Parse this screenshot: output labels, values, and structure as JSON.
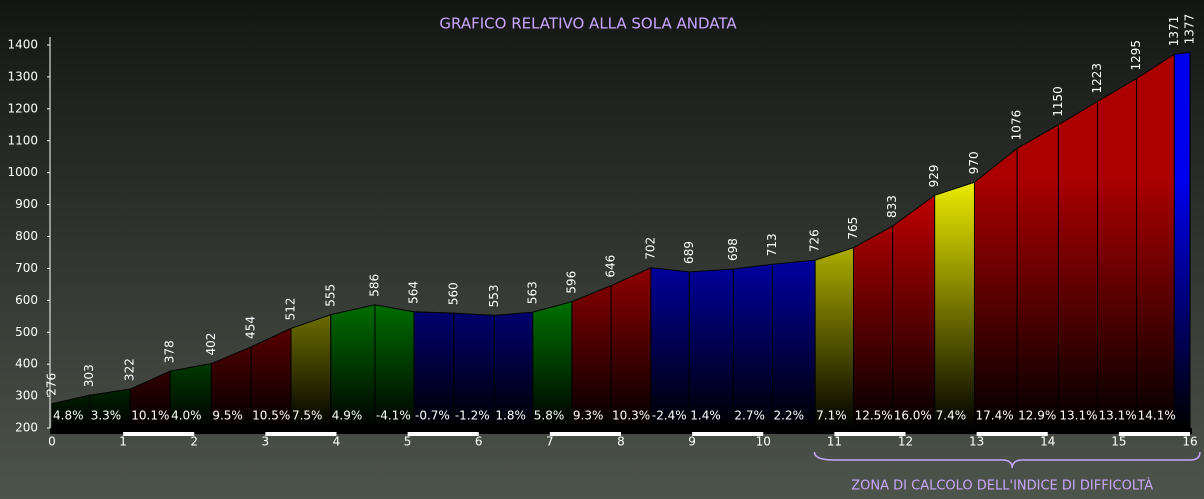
{
  "chart_data": {
    "type": "area",
    "title": "GRAFICO RELATIVO ALLA SOLA ANDATA",
    "x": [
      0,
      0.53,
      1.1,
      1.66,
      2.24,
      2.8,
      3.36,
      3.92,
      4.54,
      5.09,
      5.65,
      6.22,
      6.76,
      7.31,
      7.86,
      8.42,
      8.96,
      9.58,
      10.13,
      10.73,
      11.27,
      11.82,
      12.41,
      12.97,
      13.57,
      14.15,
      14.7,
      15.25,
      15.78,
      16
    ],
    "values": [
      276,
      303,
      322,
      378,
      402,
      454,
      512,
      555,
      586,
      564,
      560,
      553,
      563,
      596,
      646,
      702,
      689,
      698,
      713,
      726,
      765,
      833,
      929,
      970,
      1076,
      1150,
      1223,
      1295,
      1371,
      1377
    ],
    "segments": {
      "values": [
        4.8,
        3.3,
        10.1,
        4.0,
        9.5,
        10.5,
        7.5,
        4.9,
        -4.1,
        -0.7,
        -1.2,
        1.8,
        5.8,
        9.3,
        10.3,
        -2.4,
        1.4,
        2.7,
        2.2,
        7.1,
        12.5,
        16.0,
        7.4,
        17.4,
        12.9,
        13.1,
        13.1,
        14.1,
        null
      ],
      "value_labels": [
        "4.8%",
        "3.3%",
        "10.1%",
        "4.0%",
        "9.5%",
        "10.5%",
        "7.5%",
        "4.9%",
        "-4.1%",
        "-0.7%",
        "-1.2%",
        "1.8%",
        "5.8%",
        "9.3%",
        "10.3%",
        "-2.4%",
        "1.4%",
        "2.7%",
        "2.2%",
        "7.1%",
        "12.5%",
        "16.0%",
        "7.4%",
        "17.4%",
        "12.9%",
        "13.1%",
        "13.1%",
        "14.1%",
        null
      ],
      "colors": [
        "#00dd00",
        "#00dd00",
        "#dd0000",
        "#00dd00",
        "#dd0000",
        "#dd0000",
        "#eeee00",
        "#00dd00",
        "#00dd00",
        "#0000ee",
        "#0000ee",
        "#0000ee",
        "#00dd00",
        "#dd0000",
        "#dd0000",
        "#0000ee",
        "#0000ee",
        "#0000ee",
        "#0000ee",
        "#eeee00",
        "#cc0000",
        "#cc0000",
        "#eeee00",
        "#aa0000",
        "#aa0000",
        "#aa0000",
        "#aa0000",
        "#aa0000",
        "#0000ee"
      ]
    },
    "xlim": [
      0,
      16
    ],
    "xticks": [
      0,
      1,
      2,
      3,
      4,
      5,
      6,
      7,
      8,
      9,
      10,
      11,
      12,
      13,
      14,
      15,
      16
    ],
    "ylim": [
      200,
      1400
    ],
    "yticks": [
      200,
      300,
      400,
      500,
      600,
      700,
      800,
      900,
      1000,
      1100,
      1200,
      1300,
      1400
    ],
    "annotation": {
      "text": "ZONA DI CALCOLO DELL'INDICE DI DIFFICOLTÀ",
      "x": [
        11,
        16
      ]
    }
  }
}
